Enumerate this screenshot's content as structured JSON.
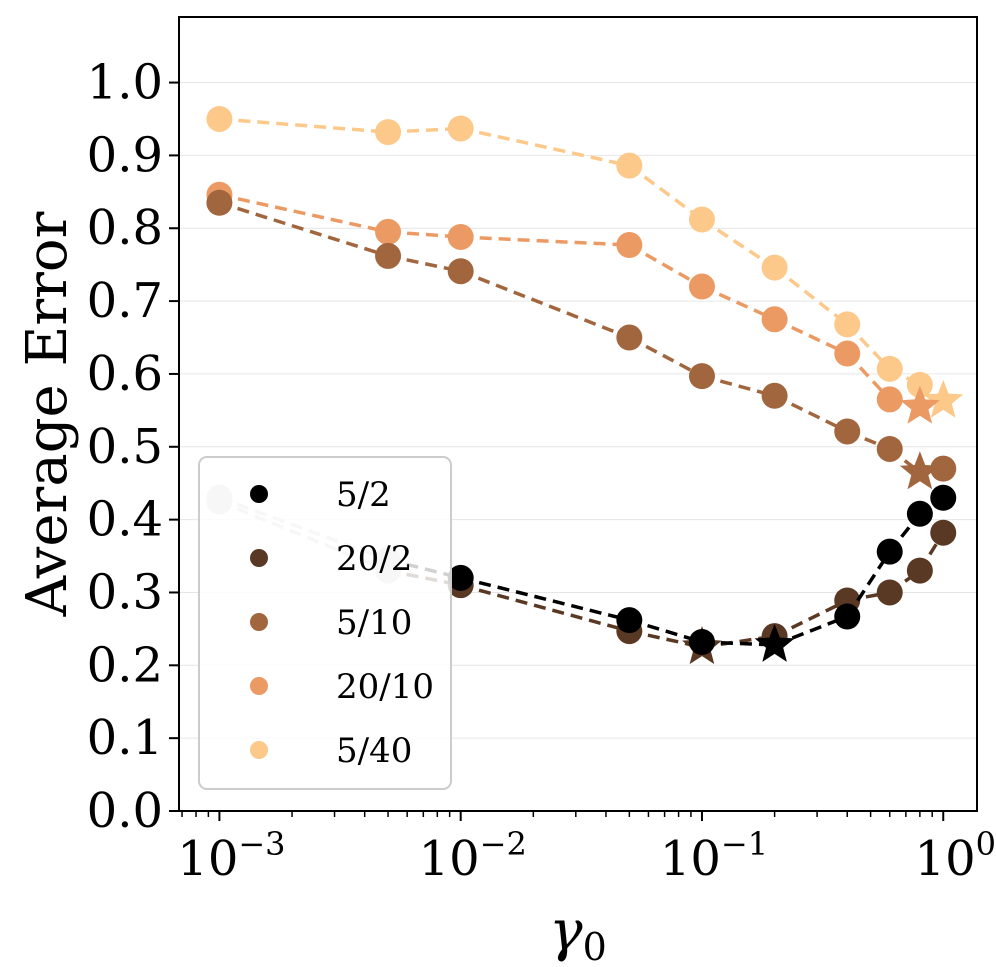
{
  "chart_data": {
    "type": "line",
    "xscale": "log",
    "xlabel": "γ",
    "xlabel_sub": "0",
    "ylabel": "Average Error",
    "ylim": [
      0.0,
      1.09
    ],
    "xlim": [
      0.00068,
      1.38
    ],
    "grid": true,
    "legend_position": "lower-left",
    "x_ticks": [
      {
        "value": 0.001,
        "base": "10",
        "exp": "−3"
      },
      {
        "value": 0.01,
        "base": "10",
        "exp": "−2"
      },
      {
        "value": 0.1,
        "base": "10",
        "exp": "−1"
      },
      {
        "value": 1,
        "base": "10",
        "exp": "0"
      }
    ],
    "y_ticks": [
      "0.0",
      "0.1",
      "0.2",
      "0.3",
      "0.4",
      "0.5",
      "0.6",
      "0.7",
      "0.8",
      "0.9",
      "1.0"
    ],
    "series": [
      {
        "name": "5/40",
        "color": "#FDC98A",
        "x": [
          0.001,
          0.005,
          0.01,
          0.05,
          0.1,
          0.2,
          0.4,
          0.6,
          0.8,
          1.0
        ],
        "y": [
          0.95,
          0.932,
          0.937,
          0.886,
          0.812,
          0.746,
          0.668,
          0.607,
          0.585,
          0.563
        ],
        "star_index": 9
      },
      {
        "name": "20/10",
        "color": "#EC9A63",
        "x": [
          0.001,
          0.005,
          0.01,
          0.05,
          0.1,
          0.2,
          0.4,
          0.6,
          0.8
        ],
        "y": [
          0.846,
          0.795,
          0.788,
          0.777,
          0.72,
          0.675,
          0.628,
          0.565,
          0.555
        ],
        "star_index": 8
      },
      {
        "name": "5/10",
        "color": "#A2663E",
        "x": [
          0.001,
          0.005,
          0.01,
          0.05,
          0.1,
          0.2,
          0.4,
          0.6,
          0.8,
          1.0
        ],
        "y": [
          0.835,
          0.762,
          0.741,
          0.65,
          0.597,
          0.57,
          0.521,
          0.497,
          0.465,
          0.47
        ],
        "star_index": 8
      },
      {
        "name": "20/2",
        "color": "#593923",
        "x": [
          0.001,
          0.005,
          0.01,
          0.05,
          0.1,
          0.2,
          0.4,
          0.6,
          0.8,
          1.0
        ],
        "y": [
          0.425,
          0.33,
          0.31,
          0.247,
          0.225,
          0.24,
          0.289,
          0.3,
          0.33,
          0.382
        ],
        "star_index": 4,
        "faded_upto": 1
      },
      {
        "name": "5/2",
        "color": "#000000",
        "x": [
          0.001,
          0.005,
          0.01,
          0.05,
          0.1,
          0.2,
          0.4,
          0.6,
          0.8,
          1.0
        ],
        "y": [
          0.43,
          0.345,
          0.32,
          0.262,
          0.232,
          0.228,
          0.267,
          0.356,
          0.408,
          0.43
        ],
        "star_index": 5,
        "faded_upto": 1
      }
    ],
    "legend_order": [
      "5/2",
      "20/2",
      "5/10",
      "20/10",
      "5/40"
    ]
  }
}
